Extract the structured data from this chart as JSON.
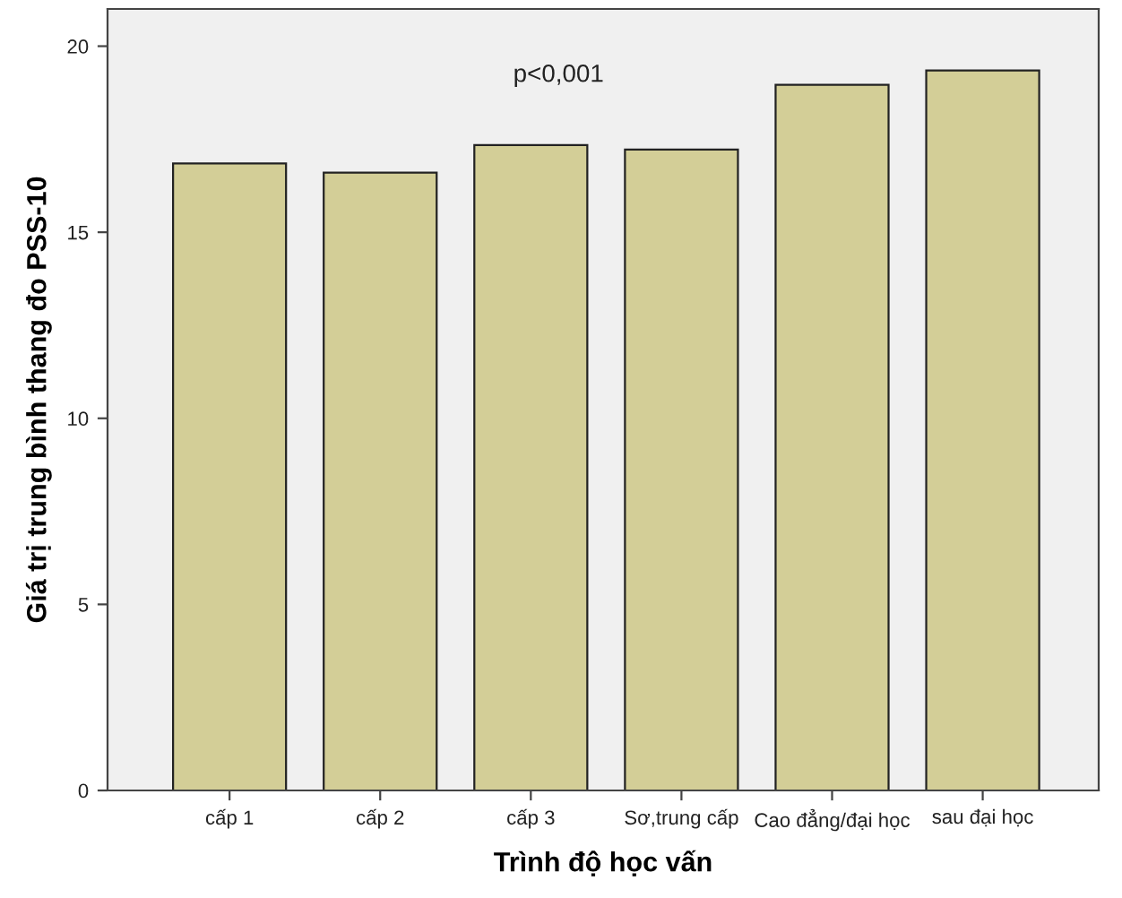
{
  "chart_data": {
    "type": "bar",
    "xlabel": "Trình độ học vấn",
    "ylabel": "Giá trị trung bình thang đo PSS-10",
    "categories": [
      "cấp 1",
      "cấp 2",
      "cấp 3",
      "Sơ,trung cấp",
      "Cao đẳng/đại học",
      "sau đại học"
    ],
    "values": [
      16.85,
      16.6,
      17.34,
      17.22,
      18.96,
      19.35
    ],
    "color": "#d3ce97",
    "ylim": [
      0,
      21
    ],
    "yticks": [
      0,
      5,
      10,
      15,
      20
    ],
    "annotations": [
      "p<0,001"
    ],
    "grid": false
  }
}
